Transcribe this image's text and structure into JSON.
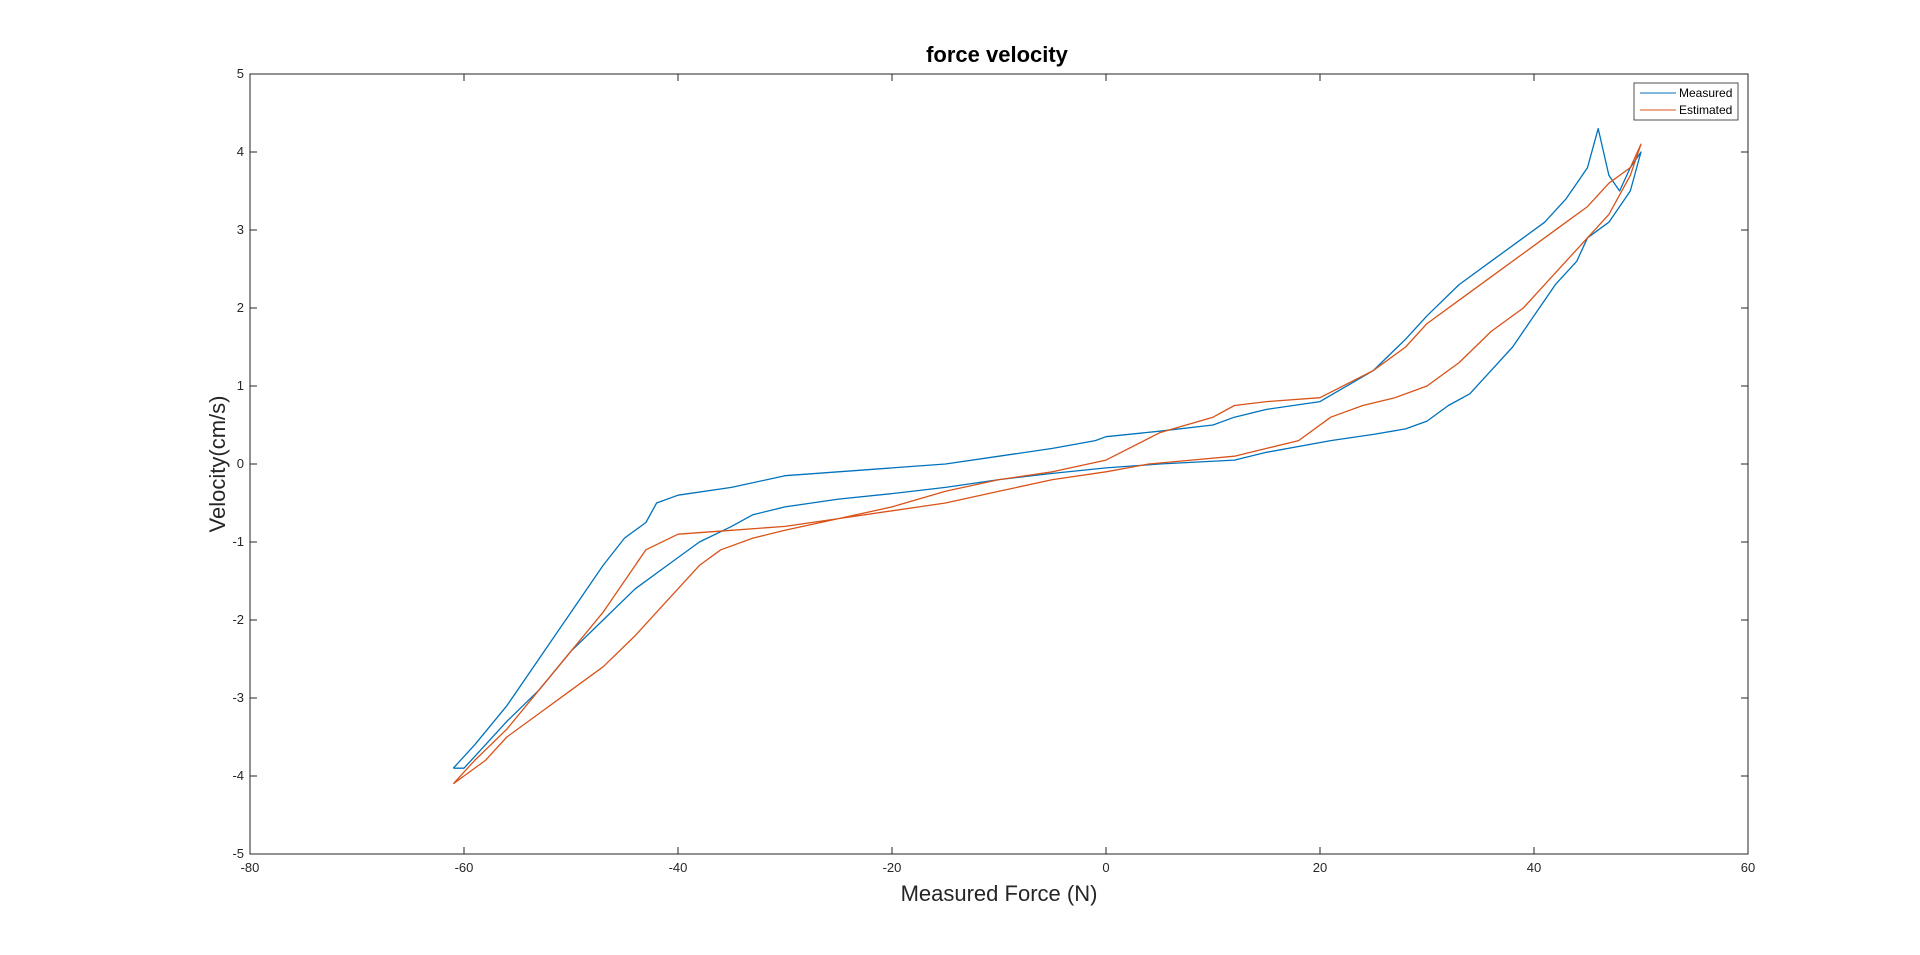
{
  "chart_data": {
    "type": "line",
    "title": "force velocity",
    "xlabel": "Measured Force (N)",
    "ylabel": "Velocity(cm/s)",
    "xlim": [
      -80,
      60
    ],
    "ylim": [
      -5,
      5
    ],
    "xticks": [
      -80,
      -60,
      -40,
      -20,
      0,
      20,
      40,
      60
    ],
    "yticks": [
      -5,
      -4,
      -3,
      -2,
      -1,
      0,
      1,
      2,
      3,
      4,
      5
    ],
    "xtick_labels": [
      "-80",
      "-60",
      "-40",
      "-20",
      "0",
      "20",
      "40",
      "60"
    ],
    "ytick_labels": [
      "-5",
      "-4",
      "-3",
      "-2",
      "-1",
      "0",
      "1",
      "2",
      "3",
      "4",
      "5"
    ],
    "grid": false,
    "legend_position": "top-right",
    "series": [
      {
        "name": "Measured",
        "color": "#0072BD",
        "x": [
          -61,
          -59,
          -56,
          -53,
          -50,
          -47,
          -45,
          -43,
          -42,
          -40,
          -35,
          -30,
          -25,
          -20,
          -15,
          -10,
          -5,
          -1,
          0,
          5,
          10,
          12,
          15,
          20,
          25,
          28,
          30,
          33,
          36,
          39,
          41,
          43,
          44,
          45,
          46,
          47,
          48,
          49,
          50,
          49,
          47,
          45,
          44,
          42,
          40,
          38,
          36,
          34,
          32,
          30,
          28,
          25,
          21,
          15,
          12,
          5,
          0,
          -5,
          -10,
          -15,
          -20,
          -25,
          -30,
          -33,
          -35,
          -38,
          -41,
          -44,
          -47,
          -50,
          -53,
          -56,
          -58,
          -60,
          -61
        ],
        "y": [
          -3.9,
          -3.6,
          -3.1,
          -2.5,
          -1.9,
          -1.3,
          -0.95,
          -0.75,
          -0.5,
          -0.4,
          -0.3,
          -0.15,
          -0.1,
          -0.05,
          0.0,
          0.1,
          0.2,
          0.3,
          0.35,
          0.42,
          0.5,
          0.6,
          0.7,
          0.8,
          1.2,
          1.6,
          1.9,
          2.3,
          2.6,
          2.9,
          3.1,
          3.4,
          3.6,
          3.8,
          4.3,
          3.7,
          3.5,
          3.8,
          4.0,
          3.5,
          3.1,
          2.9,
          2.6,
          2.3,
          1.9,
          1.5,
          1.2,
          0.9,
          0.75,
          0.55,
          0.45,
          0.38,
          0.3,
          0.15,
          0.05,
          0.0,
          -0.05,
          -0.12,
          -0.2,
          -0.3,
          -0.38,
          -0.45,
          -0.55,
          -0.65,
          -0.8,
          -1.0,
          -1.3,
          -1.6,
          -2.0,
          -2.4,
          -2.9,
          -3.3,
          -3.6,
          -3.9,
          -3.9
        ]
      },
      {
        "name": "Estimated",
        "color": "#D95319",
        "x": [
          -61,
          -59,
          -56,
          -53,
          -50,
          -47,
          -45,
          -43,
          -40,
          -35,
          -30,
          -25,
          -20,
          -15,
          -10,
          -5,
          0,
          5,
          10,
          12,
          15,
          20,
          25,
          28,
          30,
          33,
          36,
          39,
          41,
          43,
          45,
          47,
          49,
          50,
          49,
          47,
          45,
          43,
          41,
          39,
          36,
          33,
          30,
          27,
          24,
          21,
          18,
          15,
          12,
          8,
          4,
          0,
          -5,
          -10,
          -15,
          -20,
          -25,
          -30,
          -33,
          -36,
          -38,
          -40,
          -42,
          -44,
          -47,
          -50,
          -53,
          -56,
          -58,
          -60,
          -61
        ],
        "y": [
          -4.1,
          -3.8,
          -3.4,
          -2.9,
          -2.4,
          -1.9,
          -1.5,
          -1.1,
          -0.9,
          -0.85,
          -0.8,
          -0.7,
          -0.55,
          -0.35,
          -0.2,
          -0.1,
          0.05,
          0.4,
          0.6,
          0.75,
          0.8,
          0.85,
          1.2,
          1.5,
          1.8,
          2.1,
          2.4,
          2.7,
          2.9,
          3.1,
          3.3,
          3.6,
          3.8,
          4.1,
          3.7,
          3.2,
          2.9,
          2.6,
          2.3,
          2.0,
          1.7,
          1.3,
          1.0,
          0.85,
          0.75,
          0.6,
          0.3,
          0.2,
          0.1,
          0.05,
          0.0,
          -0.1,
          -0.2,
          -0.35,
          -0.5,
          -0.6,
          -0.7,
          -0.85,
          -0.95,
          -1.1,
          -1.3,
          -1.6,
          -1.9,
          -2.2,
          -2.6,
          -2.9,
          -3.2,
          -3.5,
          -3.8,
          -4.0,
          -4.1
        ]
      }
    ]
  }
}
